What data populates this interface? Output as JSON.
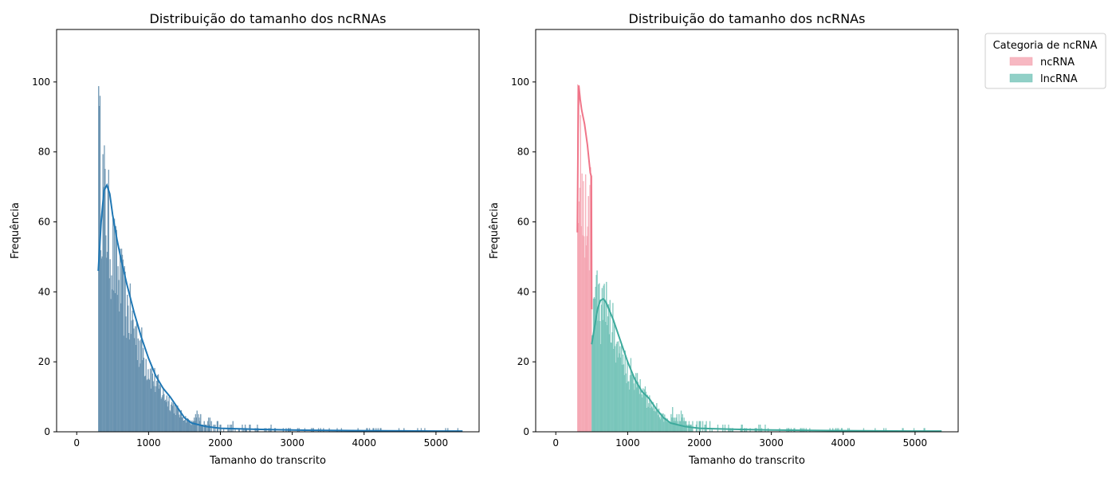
{
  "chart_data": [
    {
      "type": "histogram",
      "title": "Distribuição do tamanho dos ncRNAs",
      "xlabel": "Tamanho do transcrito",
      "ylabel": "Frequência",
      "xlim": [
        -280,
        5600
      ],
      "ylim": [
        0,
        115
      ],
      "xticks": [
        0,
        1000,
        2000,
        3000,
        4000,
        5000
      ],
      "yticks": [
        0,
        20,
        40,
        60,
        80,
        100
      ],
      "grid": false,
      "bin_width": 10,
      "series": [
        {
          "color": "#5b88a8",
          "kde_color": "#1f77b4",
          "kde": [
            [
              300,
              46
            ],
            [
              340,
              60
            ],
            [
              380,
              69
            ],
            [
              420,
              70.5
            ],
            [
              460,
              68
            ],
            [
              500,
              62
            ],
            [
              560,
              55
            ],
            [
              620,
              49
            ],
            [
              700,
              42
            ],
            [
              800,
              34
            ],
            [
              900,
              27
            ],
            [
              1000,
              21
            ],
            [
              1100,
              16
            ],
            [
              1200,
              12.5
            ],
            [
              1300,
              10
            ],
            [
              1400,
              7
            ],
            [
              1500,
              4
            ],
            [
              1600,
              2.5
            ],
            [
              1800,
              1.5
            ],
            [
              2000,
              1
            ],
            [
              2500,
              0.7
            ],
            [
              3000,
              0.5
            ],
            [
              4000,
              0.3
            ],
            [
              5000,
              0.2
            ],
            [
              5370,
              0.2
            ]
          ],
          "envelope": [
            [
              300,
              100
            ],
            [
              340,
              90
            ],
            [
              380,
              82
            ],
            [
              420,
              76
            ],
            [
              480,
              66
            ],
            [
              560,
              56
            ],
            [
              650,
              48
            ],
            [
              750,
              40
            ],
            [
              850,
              33
            ],
            [
              950,
              26
            ],
            [
              1050,
              20
            ],
            [
              1150,
              15
            ],
            [
              1250,
              12
            ],
            [
              1350,
              9
            ],
            [
              1450,
              6
            ],
            [
              1550,
              4
            ],
            [
              1650,
              2.5
            ],
            [
              1800,
              1.5
            ],
            [
              2000,
              1
            ],
            [
              2500,
              0.6
            ],
            [
              3000,
              0.4
            ],
            [
              4000,
              0.3
            ],
            [
              5370,
              0.2
            ]
          ]
        }
      ]
    },
    {
      "type": "histogram",
      "title": "Distribuição do tamanho dos ncRNAs",
      "xlabel": "Tamanho do transcrito",
      "ylabel": "Frequência",
      "xlim": [
        -280,
        5600
      ],
      "ylim": [
        0,
        115
      ],
      "xticks": [
        0,
        1000,
        2000,
        3000,
        4000,
        5000
      ],
      "yticks": [
        0,
        20,
        40,
        60,
        80,
        100
      ],
      "grid": false,
      "bin_width": 10,
      "legend": {
        "title": "Categoria de ncRNA",
        "placement": "outside upper right",
        "entries": [
          "ncRNA",
          "lncRNA"
        ]
      },
      "series": [
        {
          "name": "ncRNA",
          "x_range": [
            300,
            500
          ],
          "color": "#f4a0ad",
          "kde_color": "#f07589",
          "kde": [
            [
              300,
              57
            ],
            [
              310,
              85
            ],
            [
              320,
              99
            ],
            [
              330,
              97
            ],
            [
              340,
              95
            ],
            [
              360,
              92
            ],
            [
              380,
              90
            ],
            [
              400,
              88
            ],
            [
              420,
              85
            ],
            [
              440,
              82
            ],
            [
              460,
              78
            ],
            [
              480,
              74
            ],
            [
              495,
              73
            ],
            [
              500,
              35
            ]
          ],
          "envelope": [
            [
              300,
              100
            ],
            [
              320,
              97
            ],
            [
              340,
              95
            ],
            [
              360,
              92
            ],
            [
              380,
              89
            ],
            [
              400,
              86
            ],
            [
              420,
              83
            ],
            [
              440,
              80
            ],
            [
              460,
              76
            ],
            [
              480,
              73
            ],
            [
              500,
              70
            ]
          ]
        },
        {
          "name": "lncRNA",
          "x_range": [
            500,
            5370
          ],
          "color": "#6cc0b4",
          "kde_color": "#3daa9c",
          "kde": [
            [
              500,
              25
            ],
            [
              540,
              30
            ],
            [
              580,
              35
            ],
            [
              620,
              37.5
            ],
            [
              660,
              38
            ],
            [
              700,
              37
            ],
            [
              800,
              32
            ],
            [
              900,
              26
            ],
            [
              1000,
              20
            ],
            [
              1100,
              15
            ],
            [
              1200,
              11.5
            ],
            [
              1300,
              9.5
            ],
            [
              1400,
              6.5
            ],
            [
              1500,
              4
            ],
            [
              1600,
              2.5
            ],
            [
              1800,
              1.5
            ],
            [
              2000,
              1
            ],
            [
              2500,
              0.7
            ],
            [
              3000,
              0.5
            ],
            [
              4000,
              0.3
            ],
            [
              5000,
              0.2
            ],
            [
              5370,
              0.2
            ]
          ],
          "envelope": [
            [
              500,
              46
            ],
            [
              600,
              46
            ],
            [
              700,
              42
            ],
            [
              800,
              36
            ],
            [
              900,
              29
            ],
            [
              1000,
              23
            ],
            [
              1100,
              18
            ],
            [
              1200,
              14
            ],
            [
              1300,
              11
            ],
            [
              1400,
              8
            ],
            [
              1500,
              5
            ],
            [
              1600,
              3
            ],
            [
              1800,
              1.8
            ],
            [
              2000,
              1.2
            ],
            [
              2500,
              0.7
            ],
            [
              3000,
              0.5
            ],
            [
              4000,
              0.3
            ],
            [
              5370,
              0.2
            ]
          ]
        }
      ]
    }
  ]
}
